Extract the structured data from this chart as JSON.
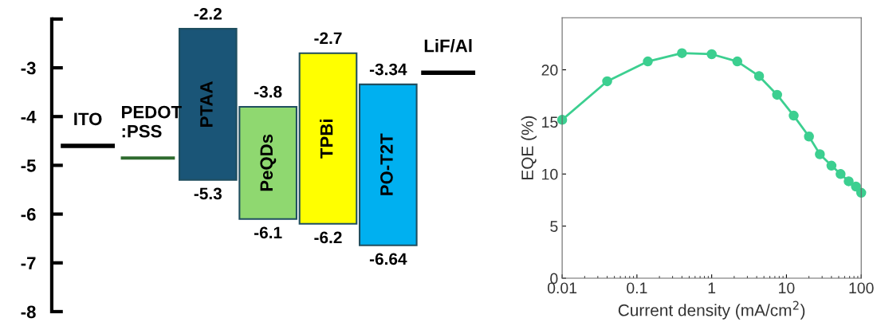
{
  "chart_data": [
    {
      "type": "bar",
      "categories": [
        "ITO",
        "PEDOT\n:PSS",
        "PTAA",
        "PeQDs",
        "TPBi",
        "PO-T2T",
        "LiF/Al"
      ],
      "base": [
        -4.6,
        -4.85,
        -5.3,
        -6.1,
        -6.2,
        -6.64,
        -3.1
      ],
      "values": [
        0,
        0,
        3.1,
        2.3,
        3.5,
        3.3,
        0
      ],
      "colors": [
        "#000000",
        "#2e6b2e",
        "#1a5577",
        "#8fd870",
        "#ffff00",
        "#00b0f0",
        "#000000"
      ],
      "ylim": [
        -8,
        -2
      ],
      "yticks": [
        {
          "value": -2,
          "label": null
        },
        -3,
        -4,
        -5,
        -6,
        -7,
        -8
      ],
      "tick_labels": "y",
      "grid": false,
      "annotations": [
        {
          "text": "-2.2",
          "x": "PTAA",
          "y": -2.2
        },
        {
          "text": "-5.3",
          "x": "PTAA",
          "y": -5.3
        },
        {
          "text": "-3.8",
          "x": "PeQDs",
          "y": -3.8
        },
        {
          "text": "-6.1",
          "x": "PeQDs",
          "y": -6.1
        },
        {
          "text": "-2.7",
          "x": "TPBi",
          "y": -2.7
        },
        {
          "text": "-6.2",
          "x": "TPBi",
          "y": -6.2
        },
        {
          "text": "-3.34",
          "x": "PO-T2T",
          "y": -3.34
        },
        {
          "text": "-6.64",
          "x": "PO-T2T",
          "y": -6.64
        }
      ]
    },
    {
      "type": "line",
      "xlabel": "Current density (mA/cm$^{2}$)",
      "ylabel": "EQE (%)",
      "x": [
        0.01,
        0.04,
        0.14,
        0.4,
        1,
        2.2,
        4.3,
        7.5,
        12.5,
        20,
        28,
        40,
        53,
        68,
        85,
        100
      ],
      "series": [
        {
          "color": "#3ccf90",
          "values": [
            15.2,
            18.9,
            20.8,
            21.6,
            21.5,
            20.8,
            19.4,
            17.6,
            15.6,
            13.6,
            11.9,
            10.8,
            10.0,
            9.3,
            8.8,
            8.2
          ]
        }
      ],
      "log": "x",
      "xlim": [
        0.01,
        100
      ],
      "xticks": [
        0.01,
        0.1,
        1,
        10,
        100
      ],
      "ylim": [
        0,
        25
      ],
      "yticks": [
        0,
        5,
        10,
        15,
        20
      ],
      "marker": "circle",
      "line_style": "solid",
      "grid": false,
      "legend": false
    }
  ]
}
